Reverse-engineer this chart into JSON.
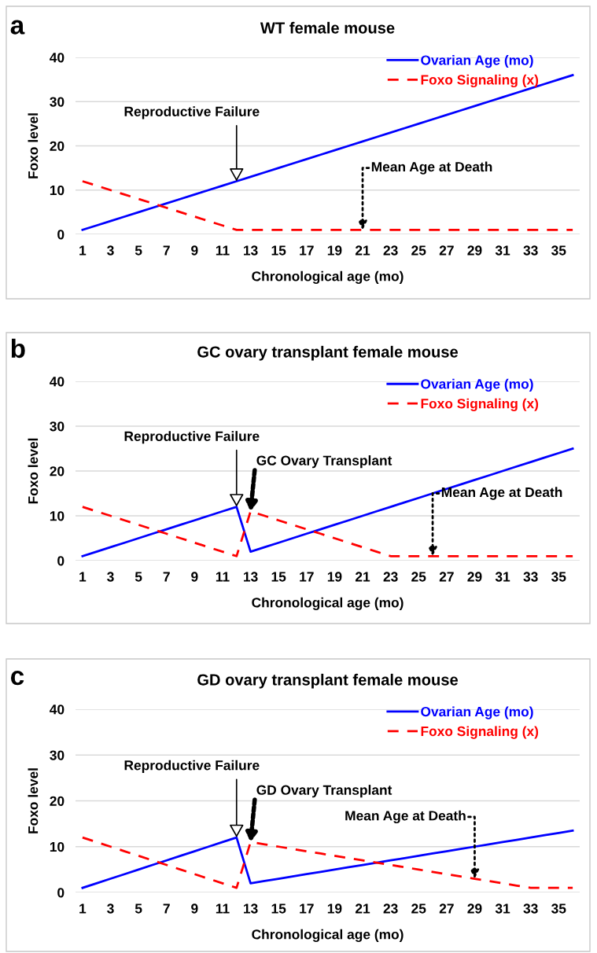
{
  "chart_data": [
    {
      "type": "line",
      "title": "WT female mouse",
      "xlabel": "Chronological age (mo)",
      "ylabel": "Foxo level",
      "x": [
        1,
        2,
        3,
        4,
        5,
        6,
        7,
        8,
        9,
        10,
        11,
        12,
        13,
        14,
        15,
        16,
        17,
        18,
        19,
        20,
        21,
        22,
        23,
        24,
        25,
        26,
        27,
        28,
        29,
        30,
        31,
        32,
        33,
        34,
        35,
        36
      ],
      "series": [
        {
          "name": "Ovarian Age (mo)",
          "color": "#0000ff",
          "line_style": "solid",
          "values": [
            1,
            2,
            3,
            4,
            5,
            6,
            7,
            8,
            9,
            10,
            11,
            12,
            13,
            14,
            15,
            16,
            17,
            18,
            19,
            20,
            21,
            22,
            23,
            24,
            25,
            26,
            27,
            28,
            29,
            30,
            31,
            32,
            33,
            34,
            35,
            36
          ]
        },
        {
          "name": "Foxo Signaling (x)",
          "color": "#ff0000",
          "line_style": "dashed",
          "values": [
            12,
            11,
            10,
            9,
            8,
            7,
            6,
            5,
            4,
            3,
            2,
            1,
            1,
            1,
            1,
            1,
            1,
            1,
            1,
            1,
            1,
            1,
            1,
            1,
            1,
            1,
            1,
            1,
            1,
            1,
            1,
            1,
            1,
            1,
            1,
            1
          ]
        }
      ],
      "xlim": [
        0.5,
        36.5
      ],
      "xticks": [
        1,
        3,
        5,
        7,
        9,
        11,
        13,
        15,
        17,
        19,
        21,
        23,
        25,
        27,
        29,
        31,
        33,
        35
      ],
      "ylim": [
        0,
        40
      ],
      "yticks": [
        0,
        10,
        20,
        30,
        40
      ],
      "grid": "y",
      "legend": "top right",
      "marker": "none",
      "annotations": [
        "a",
        {
          "text": "Reproductive Failure",
          "x": 12,
          "y": 12
        },
        {
          "text": "Mean Age at Death",
          "x": 21,
          "y": 1
        }
      ]
    },
    {
      "type": "line",
      "title": "GC ovary transplant female mouse",
      "xlabel": "Chronological age (mo)",
      "ylabel": "Foxo level",
      "x": [
        1,
        2,
        3,
        4,
        5,
        6,
        7,
        8,
        9,
        10,
        11,
        12,
        13,
        14,
        15,
        16,
        17,
        18,
        19,
        20,
        21,
        22,
        23,
        24,
        25,
        26,
        27,
        28,
        29,
        30,
        31,
        32,
        33,
        34,
        35,
        36
      ],
      "series": [
        {
          "name": "Ovarian Age (mo)",
          "color": "#0000ff",
          "line_style": "solid",
          "values": [
            1,
            2,
            3,
            4,
            5,
            6,
            7,
            8,
            9,
            10,
            11,
            12,
            2,
            3,
            4,
            5,
            6,
            7,
            8,
            9,
            10,
            11,
            12,
            13,
            14,
            15,
            16,
            17,
            18,
            19,
            20,
            21,
            22,
            23,
            24,
            25
          ]
        },
        {
          "name": "Foxo Signaling (x)",
          "color": "#ff0000",
          "line_style": "dashed",
          "values": [
            12,
            11,
            10,
            9,
            8,
            7,
            6,
            5,
            4,
            3,
            2,
            1,
            11,
            10,
            9,
            8,
            7,
            6,
            5,
            4,
            3,
            2,
            1,
            1,
            1,
            1,
            1,
            1,
            1,
            1,
            1,
            1,
            1,
            1,
            1,
            1
          ]
        }
      ],
      "xlim": [
        0.5,
        36.5
      ],
      "xticks": [
        1,
        3,
        5,
        7,
        9,
        11,
        13,
        15,
        17,
        19,
        21,
        23,
        25,
        27,
        29,
        31,
        33,
        35
      ],
      "ylim": [
        0,
        40
      ],
      "yticks": [
        0,
        10,
        20,
        30,
        40
      ],
      "grid": "y",
      "legend": "top right",
      "marker": "none",
      "annotations": [
        "b",
        {
          "text": "Reproductive Failure",
          "x": 12,
          "y": 12
        },
        {
          "text": "GC Ovary Transplant",
          "x": 13,
          "y": 11
        },
        {
          "text": "Mean Age at Death",
          "x": 26,
          "y": 1
        }
      ]
    },
    {
      "type": "line",
      "title": "GD ovary transplant female mouse",
      "xlabel": "Chronological age (mo)",
      "ylabel": "Foxo level",
      "x": [
        1,
        2,
        3,
        4,
        5,
        6,
        7,
        8,
        9,
        10,
        11,
        12,
        13,
        14,
        15,
        16,
        17,
        18,
        19,
        20,
        21,
        22,
        23,
        24,
        25,
        26,
        27,
        28,
        29,
        30,
        31,
        32,
        33,
        34,
        35,
        36
      ],
      "series": [
        {
          "name": "Ovarian Age (mo)",
          "color": "#0000ff",
          "line_style": "solid",
          "values": [
            1,
            2,
            3,
            4,
            5,
            6,
            7,
            8,
            9,
            10,
            11,
            12,
            2,
            2.5,
            3,
            3.5,
            4,
            4.5,
            5,
            5.5,
            6,
            6.5,
            7,
            7.5,
            8,
            8.5,
            9,
            9.5,
            10,
            10.5,
            11,
            11.5,
            12,
            12.5,
            13,
            13.5
          ]
        },
        {
          "name": "Foxo Signaling (x)",
          "color": "#ff0000",
          "line_style": "dashed",
          "values": [
            12,
            11,
            10,
            9,
            8,
            7,
            6,
            5,
            4,
            3,
            2,
            1,
            11,
            10.5,
            10,
            9.5,
            9,
            8.5,
            8,
            7.5,
            7,
            6.5,
            6,
            5.5,
            5,
            4.5,
            4,
            3.5,
            3,
            2.5,
            2,
            1.5,
            1,
            1,
            1,
            1
          ]
        }
      ],
      "xlim": [
        0.5,
        36.5
      ],
      "xticks": [
        1,
        3,
        5,
        7,
        9,
        11,
        13,
        15,
        17,
        19,
        21,
        23,
        25,
        27,
        29,
        31,
        33,
        35
      ],
      "ylim": [
        0,
        40
      ],
      "yticks": [
        0,
        10,
        20,
        30,
        40
      ],
      "grid": "y",
      "legend": "top right",
      "marker": "none",
      "annotations": [
        "c",
        {
          "text": "Reproductive Failure",
          "x": 12,
          "y": 12
        },
        {
          "text": "GD Ovary Transplant",
          "x": 13,
          "y": 11
        },
        {
          "text": "Mean Age at Death",
          "x": 29,
          "y": 3
        }
      ]
    }
  ]
}
